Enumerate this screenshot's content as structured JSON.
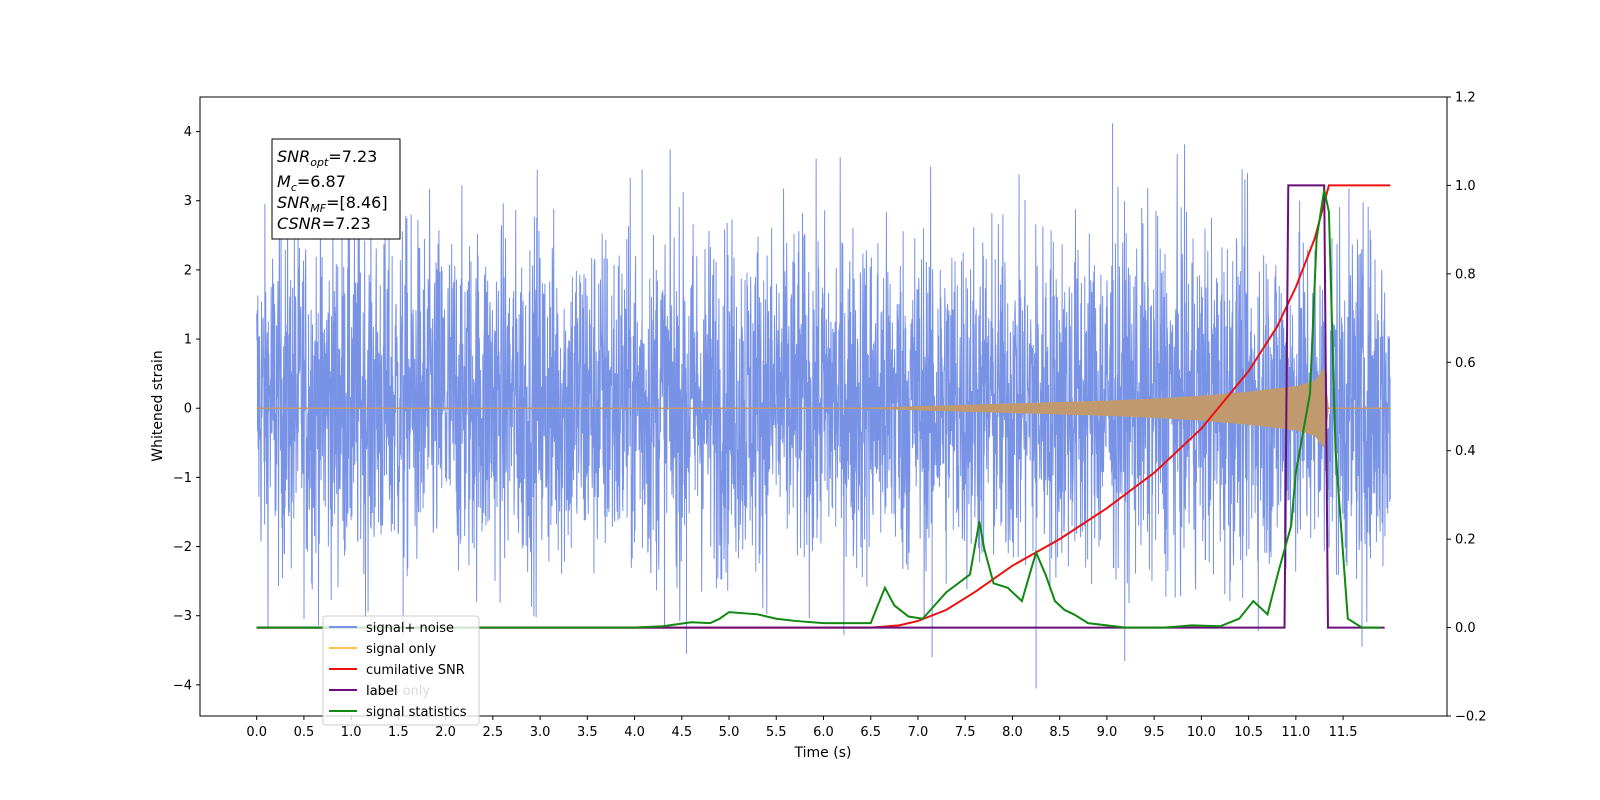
{
  "chart_data": {
    "type": "line",
    "xlabel": "Time (s)",
    "ylabel": "Whitened strain",
    "xlim": [
      -0.6,
      12.6
    ],
    "ylim": [
      -4.45,
      4.5
    ],
    "ylim_right": [
      -0.2,
      1.2
    ],
    "x_ticks": [
      "0.0",
      "0.5",
      "1.0",
      "1.5",
      "2.0",
      "2.5",
      "3.0",
      "3.5",
      "4.0",
      "4.5",
      "5.0",
      "5.5",
      "6.0",
      "6.5",
      "7.0",
      "7.5",
      "8.0",
      "8.5",
      "9.0",
      "9.5",
      "10.0",
      "10.5",
      "11.0",
      "11.5"
    ],
    "y_ticks": [
      "4",
      "3",
      "2",
      "1",
      "0",
      "−1",
      "−2",
      "−3",
      "−4"
    ],
    "y_ticks_right": [
      "1.2",
      "1.0",
      "0.8",
      "0.6",
      "0.4",
      "0.2",
      "0.0",
      "−0.2"
    ],
    "annotation": {
      "snr_opt": "=7.23",
      "mc": "=6.87",
      "snr_mf": "=[8.46]",
      "csnr": "=7.23"
    },
    "legend": {
      "placement": "lower left",
      "entries": [
        "signal+ noise",
        "signal only",
        "cumilative SNR",
        "label",
        "signal statistics"
      ],
      "hidden_entries": [
        "label only"
      ]
    },
    "colors": {
      "noise": "#7892e6",
      "signal": "#c09a6e",
      "signal_legend": "#ffc04d",
      "cumulative_snr": "#ee1111",
      "label": "#6a0f7a",
      "signal_statistics": "#118811"
    },
    "series": [
      {
        "name": "signal+ noise",
        "axis": "left",
        "x_range": [
          0.0,
          12.0
        ],
        "envelope_typical": [
          -2.2,
          2.4
        ],
        "peaks": [
          [
            9.06,
            4.12
          ],
          [
            2.97,
            3.45
          ],
          [
            4.08,
            3.45
          ],
          [
            8.25,
            -4.05
          ],
          [
            7.15,
            -3.6
          ],
          [
            4.55,
            -3.55
          ],
          [
            11.7,
            -3.45
          ],
          [
            1.55,
            -3.3
          ]
        ]
      },
      {
        "name": "signal only",
        "axis": "left",
        "x": [
          0.0,
          6.5,
          7.0,
          7.5,
          8.0,
          8.5,
          9.0,
          9.5,
          10.0,
          10.5,
          11.0,
          11.2,
          11.3,
          11.35,
          12.0
        ],
        "amplitude": [
          0.0,
          0.01,
          0.03,
          0.05,
          0.07,
          0.09,
          0.11,
          0.14,
          0.18,
          0.24,
          0.32,
          0.4,
          0.58,
          0.0,
          0.0
        ]
      },
      {
        "name": "cumilative SNR",
        "axis": "right",
        "x": [
          0.0,
          6.5,
          6.8,
          7.0,
          7.3,
          7.6,
          8.0,
          8.5,
          9.0,
          9.5,
          10.0,
          10.5,
          10.8,
          11.0,
          11.2,
          11.3,
          11.35,
          12.0
        ],
        "y": [
          0.0,
          0.0,
          0.005,
          0.015,
          0.04,
          0.08,
          0.14,
          0.2,
          0.27,
          0.35,
          0.45,
          0.58,
          0.68,
          0.77,
          0.88,
          0.96,
          1.0,
          1.0
        ]
      },
      {
        "name": "label",
        "axis": "right",
        "x": [
          0.0,
          10.88,
          10.92,
          11.3,
          11.34,
          11.94
        ],
        "y": [
          0.0,
          0.0,
          1.0,
          1.0,
          0.0,
          0.0
        ]
      },
      {
        "name": "signal statistics",
        "axis": "right",
        "x": [
          0.0,
          4.0,
          4.3,
          4.6,
          4.8,
          4.9,
          5.0,
          5.3,
          5.5,
          5.7,
          6.0,
          6.2,
          6.5,
          6.65,
          6.75,
          6.9,
          7.05,
          7.3,
          7.55,
          7.65,
          7.7,
          7.8,
          7.95,
          8.1,
          8.25,
          8.35,
          8.45,
          8.55,
          8.65,
          8.8,
          9.2,
          9.6,
          9.9,
          10.2,
          10.4,
          10.55,
          10.7,
          10.82,
          10.95,
          11.0,
          11.1,
          11.15,
          11.22,
          11.3,
          11.35,
          11.42,
          11.55,
          11.7,
          11.9
        ],
        "y": [
          0.0,
          0.0,
          0.003,
          0.012,
          0.01,
          0.02,
          0.035,
          0.03,
          0.02,
          0.015,
          0.01,
          0.01,
          0.01,
          0.09,
          0.05,
          0.025,
          0.02,
          0.08,
          0.12,
          0.24,
          0.18,
          0.1,
          0.09,
          0.06,
          0.17,
          0.12,
          0.06,
          0.04,
          0.03,
          0.01,
          0.0,
          0.0,
          0.005,
          0.003,
          0.02,
          0.06,
          0.03,
          0.13,
          0.23,
          0.35,
          0.47,
          0.53,
          0.88,
          0.99,
          0.94,
          0.4,
          0.02,
          0.0,
          0.0
        ]
      }
    ]
  }
}
